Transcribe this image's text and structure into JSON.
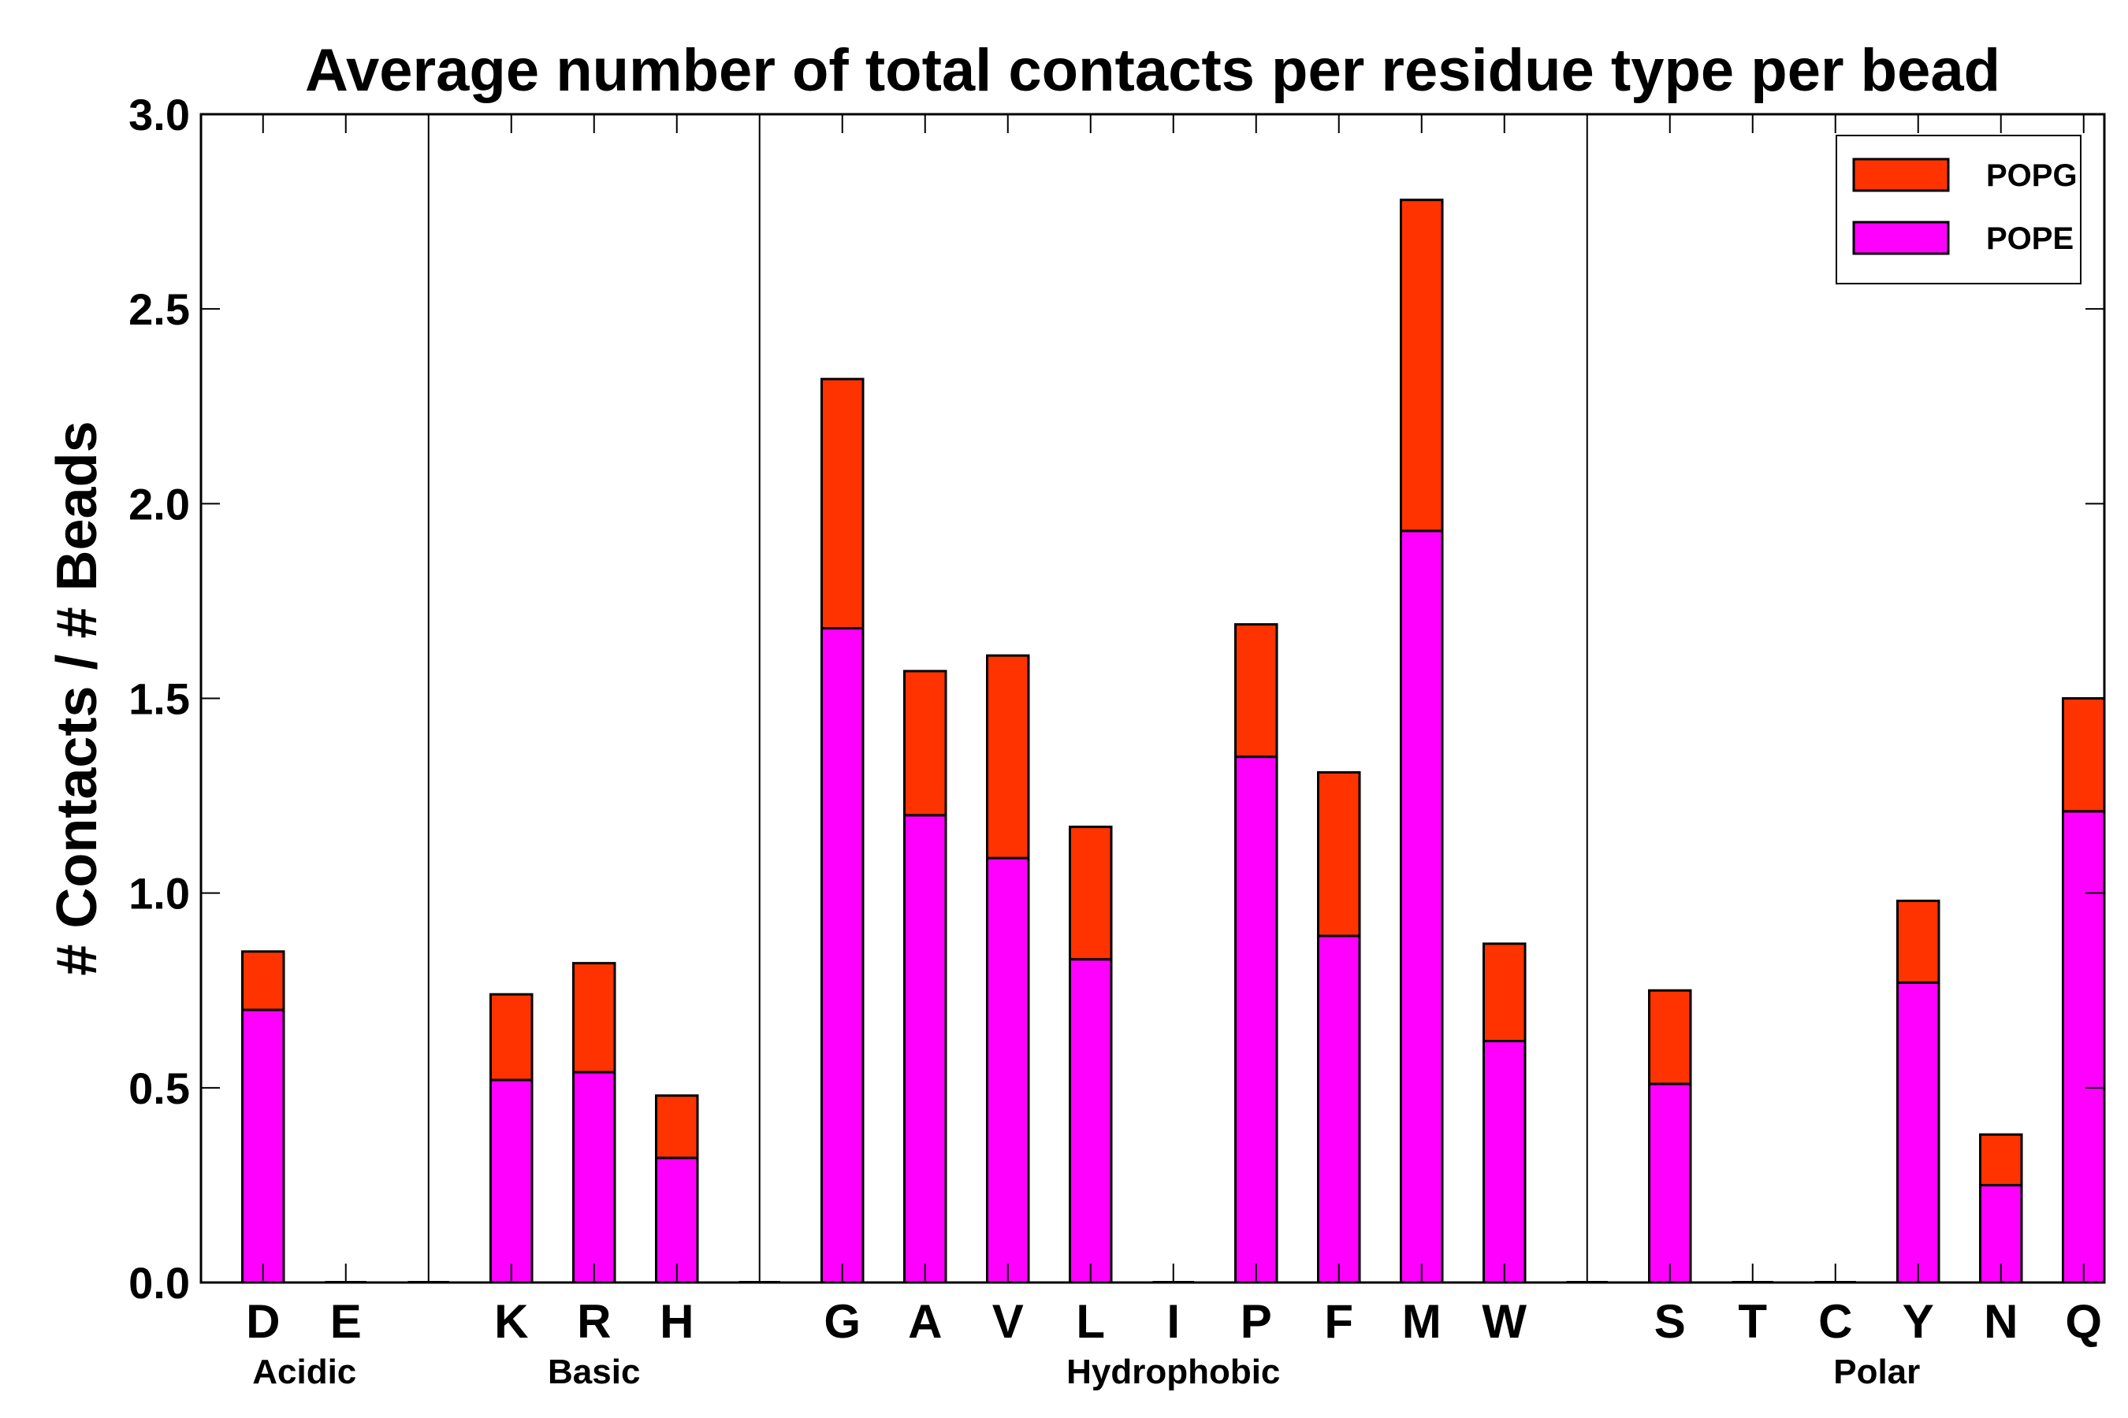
{
  "chart_data": {
    "type": "bar",
    "stacked": true,
    "title": "Average number of total contacts per residue type per bead",
    "xlabel": "",
    "ylabel": "# Contacts / # Beads",
    "ylim": [
      0,
      3.0
    ],
    "yticks": [
      "0.0",
      "0.5",
      "1.0",
      "1.5",
      "2.0",
      "2.5",
      "3.0"
    ],
    "categories": [
      "D",
      "E",
      "",
      "K",
      "R",
      "H",
      "",
      "G",
      "A",
      "V",
      "L",
      "I",
      "P",
      "F",
      "M",
      "W",
      "",
      "S",
      "T",
      "C",
      "Y",
      "N",
      "Q"
    ],
    "series": [
      {
        "name": "POPE",
        "color": "#ff00ff",
        "values": [
          0.7,
          0.0,
          0.0,
          0.52,
          0.54,
          0.32,
          0.0,
          1.68,
          1.2,
          1.09,
          0.83,
          0.0,
          1.35,
          0.89,
          1.93,
          0.62,
          0.0,
          0.51,
          0.0,
          0.0,
          0.77,
          0.25,
          1.21
        ]
      },
      {
        "name": "POPG",
        "color": "#ff3300",
        "values": [
          0.15,
          0.0,
          0.0,
          0.22,
          0.28,
          0.16,
          0.0,
          0.64,
          0.37,
          0.52,
          0.34,
          0.0,
          0.34,
          0.42,
          0.85,
          0.25,
          0.0,
          0.24,
          0.0,
          0.0,
          0.21,
          0.13,
          0.29
        ]
      }
    ],
    "groups": [
      {
        "label": "Acidic",
        "first": 0,
        "last": 1
      },
      {
        "label": "Basic",
        "first": 3,
        "last": 5
      },
      {
        "label": "Hydrophobic",
        "first": 7,
        "last": 15
      },
      {
        "label": "Polar",
        "first": 17,
        "last": 22
      }
    ],
    "separators_after": [
      2,
      6,
      16
    ],
    "legend": {
      "position": "top-right",
      "entries": [
        "POPG",
        "POPE"
      ]
    },
    "grid": false
  }
}
